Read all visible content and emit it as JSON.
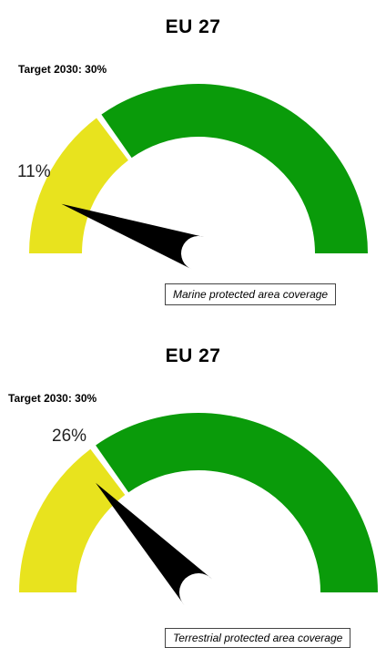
{
  "chart_data": [
    {
      "type": "gauge",
      "title": "EU 27",
      "target_label": "Target 2030: 30%",
      "value": 11,
      "value_label": "11%",
      "target": 30,
      "range": [
        0,
        100
      ],
      "caption": "Marine protected area coverage",
      "colors": {
        "below_target": "#e8e31e",
        "above_target": "#0a9b0a",
        "needle": "#000000"
      }
    },
    {
      "type": "gauge",
      "title": "EU 27",
      "target_label": "Target 2030: 30%",
      "value": 26,
      "value_label": "26%",
      "target": 30,
      "range": [
        0,
        100
      ],
      "caption": "Terrestrial protected area coverage",
      "colors": {
        "below_target": "#e8e31e",
        "above_target": "#0a9b0a",
        "needle": "#000000"
      }
    }
  ]
}
